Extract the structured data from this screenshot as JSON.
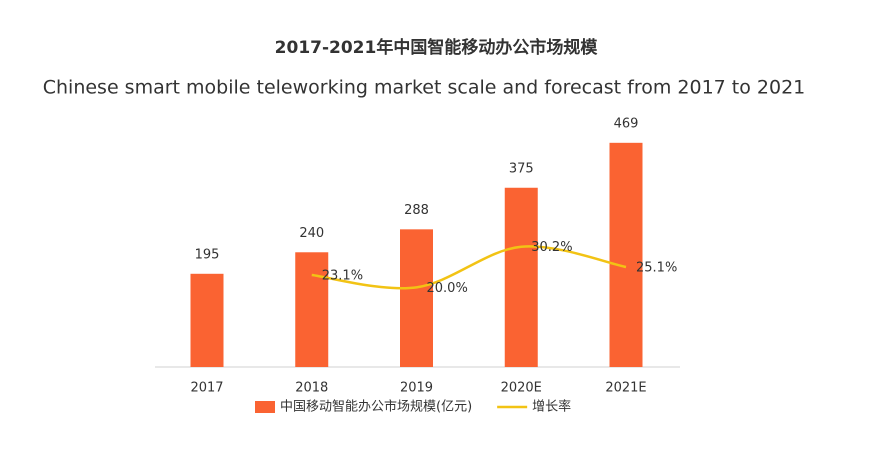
{
  "chart_data": {
    "type": "bar",
    "title": "2017-2021年中国智能移动办公市场规模",
    "subtitle": "Chinese smart mobile teleworking market scale and forecast from 2017 to 2021",
    "categories": [
      "2017",
      "2018",
      "2019",
      "2020E",
      "2021E"
    ],
    "series": [
      {
        "name": "中国移动智能办公市场规模(亿元)",
        "type": "bar",
        "color": "#fa6332",
        "values": [
          195,
          240,
          288,
          375,
          469
        ]
      },
      {
        "name": "增长率",
        "type": "line",
        "axis": "y2",
        "color": "#f2c314",
        "values": [
          null,
          23.1,
          20.0,
          30.2,
          25.1
        ],
        "value_labels": [
          null,
          "23.1%",
          "20.0%",
          "30.2%",
          "25.1%"
        ]
      }
    ],
    "ylim": [
      0,
      500
    ],
    "y2lim": [
      0,
      60
    ],
    "legend": "bottom"
  }
}
